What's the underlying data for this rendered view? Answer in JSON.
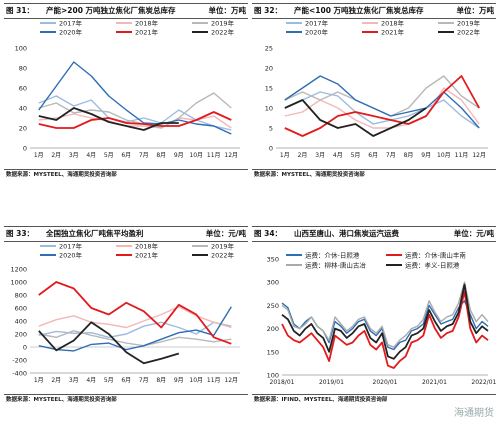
{
  "chart_data": [
    {
      "type": "line",
      "figure": "图 31：",
      "title": "产能>200 万吨独立焦化厂焦炭总库存",
      "unit": "单位：万吨",
      "source": "数据来源：MYSTEEL、海通期货投资咨询部",
      "x_ticks": [
        "1月",
        "2月",
        "3月",
        "4月",
        "5月",
        "6月",
        "7月",
        "8月",
        "9月",
        "10月",
        "11月",
        "12月"
      ],
      "ylim": [
        0,
        100
      ],
      "y_ticks": [
        0,
        20,
        40,
        60,
        80,
        100
      ],
      "y_labels": [
        "0",
        "20",
        "40",
        "60",
        "80",
        "100"
      ],
      "series": [
        {
          "name": "2017年",
          "color": "#9dbbe0",
          "values": [
            45,
            52,
            42,
            48,
            30,
            26,
            30,
            25,
            38,
            28,
            22,
            18
          ]
        },
        {
          "name": "2018年",
          "color": "#f2b8b8",
          "values": [
            28,
            30,
            34,
            30,
            27,
            22,
            22,
            20,
            30,
            28,
            32,
            20
          ]
        },
        {
          "name": "2019年",
          "color": "#b8b8b8",
          "values": [
            40,
            45,
            35,
            38,
            36,
            28,
            24,
            20,
            30,
            45,
            55,
            40
          ]
        },
        {
          "name": "2020年",
          "color": "#2f6db5",
          "values": [
            38,
            62,
            86,
            72,
            52,
            38,
            25,
            24,
            28,
            24,
            22,
            14
          ]
        },
        {
          "name": "2021年",
          "color": "#e31a1c",
          "values": [
            24,
            20,
            20,
            28,
            30,
            25,
            24,
            22,
            22,
            28,
            36,
            28
          ]
        },
        {
          "name": "2022年",
          "color": "#222222",
          "values": [
            32,
            28,
            40,
            34,
            26,
            22,
            18,
            25,
            25,
            null,
            null,
            null
          ]
        }
      ]
    },
    {
      "type": "line",
      "figure": "图 32：",
      "title": "产能<100 万吨独立焦化厂焦炭总库存",
      "unit": "单位：万吨",
      "source": "数据来源：MYSTEEL、海通期货投资咨询部",
      "x_ticks": [
        "1月",
        "2月",
        "3月",
        "4月",
        "5月",
        "6月",
        "7月",
        "8月",
        "9月",
        "10月",
        "11月",
        "12月"
      ],
      "ylim": [
        0,
        25
      ],
      "y_ticks": [
        0,
        5,
        10,
        15,
        20,
        25
      ],
      "y_labels": [
        "0",
        "5",
        "10",
        "15",
        "20",
        "25"
      ],
      "series": [
        {
          "name": "2017年",
          "color": "#9dbbe0",
          "values": [
            10,
            12,
            14,
            13,
            9,
            6,
            7,
            8,
            10,
            12,
            8,
            5
          ]
        },
        {
          "name": "2018年",
          "color": "#f2b8b8",
          "values": [
            8,
            9,
            12,
            10,
            7,
            5,
            5,
            6,
            8,
            15,
            12,
            6
          ]
        },
        {
          "name": "2019年",
          "color": "#b8b8b8",
          "values": [
            12,
            14,
            12,
            14,
            12,
            10,
            8,
            10,
            15,
            18,
            13,
            10
          ]
        },
        {
          "name": "2020年",
          "color": "#2f6db5",
          "values": [
            12,
            15,
            18,
            16,
            12,
            10,
            8,
            9,
            10,
            14,
            10,
            5
          ]
        },
        {
          "name": "2021年",
          "color": "#e31a1c",
          "values": [
            5,
            3,
            5,
            8,
            9,
            8,
            7,
            6,
            8,
            14,
            18,
            10
          ]
        },
        {
          "name": "2022年",
          "color": "#222222",
          "values": [
            10,
            12,
            7,
            5,
            6,
            3,
            5,
            7,
            10,
            null,
            null,
            null
          ]
        }
      ]
    },
    {
      "type": "line",
      "figure": "图 33：",
      "title": "全国独立焦化厂吨焦平均盈利",
      "unit": "单位：元/吨",
      "source": "数据来源：MYSTEEL、海通期货投资咨询部",
      "x_ticks": [
        "1月",
        "2月",
        "3月",
        "4月",
        "5月",
        "6月",
        "7月",
        "8月",
        "9月",
        "10月",
        "11月",
        "12月"
      ],
      "ylim": [
        -400,
        1200
      ],
      "y_ticks": [
        -400,
        -200,
        0,
        200,
        400,
        600,
        800,
        1000,
        1200
      ],
      "y_labels": [
        "-400",
        "-200",
        "0",
        "200",
        "400",
        "600",
        "800",
        "1000",
        "1200"
      ],
      "series": [
        {
          "name": "2017年",
          "color": "#9dbbe0",
          "values": [
            180,
            240,
            210,
            220,
            150,
            200,
            320,
            380,
            300,
            200,
            380,
            320
          ]
        },
        {
          "name": "2018年",
          "color": "#f2b8b8",
          "values": [
            320,
            420,
            480,
            380,
            350,
            300,
            400,
            500,
            620,
            480,
            380,
            300
          ]
        },
        {
          "name": "2019年",
          "color": "#b8b8b8",
          "values": [
            200,
            150,
            250,
            180,
            120,
            60,
            20,
            80,
            150,
            120,
            80,
            120
          ]
        },
        {
          "name": "2020年",
          "color": "#2f6db5",
          "values": [
            20,
            -40,
            -60,
            40,
            60,
            -40,
            20,
            120,
            220,
            260,
            180,
            620
          ]
        },
        {
          "name": "2021年",
          "color": "#e31a1c",
          "values": [
            800,
            1000,
            900,
            600,
            500,
            680,
            550,
            300,
            650,
            500,
            150,
            50
          ]
        },
        {
          "name": "2022年",
          "color": "#222222",
          "values": [
            250,
            -50,
            100,
            380,
            200,
            -80,
            -250,
            -180,
            -100,
            null,
            null,
            null
          ]
        }
      ]
    },
    {
      "type": "line",
      "figure": "图 34：",
      "title": "山西至唐山、港口焦炭运汽运费",
      "unit": "单位：元/吨",
      "source": "数据来源：IFIND、MYSTEEL、海通期货投资咨询部",
      "x_ticks": [
        "2018/01",
        "2019/01",
        "2020/01",
        "2021/01",
        "2022/01"
      ],
      "x_tick_pos": [
        0,
        0.24,
        0.5,
        0.74,
        0.98
      ],
      "ylim": [
        100,
        350
      ],
      "y_ticks": [
        100,
        150,
        200,
        250,
        300,
        350
      ],
      "y_labels": [
        "100",
        "150",
        "200",
        "250",
        "300",
        "350"
      ],
      "series": [
        {
          "name": "运费：介休-日照港",
          "color": "#2f6db5",
          "values": [
            255,
            245,
            210,
            200,
            215,
            225,
            205,
            195,
            170,
            215,
            205,
            190,
            200,
            215,
            220,
            195,
            185,
            200,
            160,
            155,
            170,
            175,
            195,
            200,
            210,
            250,
            230,
            210,
            215,
            220,
            245,
            260,
            230,
            200,
            215,
            205
          ]
        },
        {
          "name": "运费：介休-唐山丰南",
          "color": "#e31a1c",
          "values": [
            210,
            185,
            175,
            170,
            180,
            190,
            175,
            160,
            130,
            185,
            175,
            165,
            170,
            185,
            195,
            165,
            155,
            170,
            120,
            115,
            130,
            140,
            170,
            175,
            185,
            230,
            200,
            180,
            190,
            195,
            225,
            280,
            200,
            170,
            185,
            175
          ]
        },
        {
          "name": "运费：柳林-唐山古冶",
          "color": "#aaaaaa",
          "values": [
            250,
            240,
            205,
            200,
            210,
            225,
            205,
            195,
            175,
            225,
            210,
            195,
            205,
            220,
            225,
            200,
            190,
            205,
            165,
            160,
            175,
            185,
            200,
            205,
            220,
            260,
            235,
            215,
            225,
            230,
            255,
            300,
            240,
            215,
            230,
            215
          ]
        },
        {
          "name": "运费：孝义-日照港",
          "color": "#222222",
          "values": [
            230,
            220,
            195,
            185,
            200,
            210,
            190,
            180,
            150,
            200,
            195,
            180,
            190,
            205,
            210,
            180,
            170,
            190,
            140,
            135,
            150,
            160,
            185,
            190,
            200,
            240,
            215,
            195,
            205,
            210,
            235,
            295,
            215,
            190,
            205,
            195
          ]
        }
      ]
    }
  ],
  "watermark": "海通期货"
}
